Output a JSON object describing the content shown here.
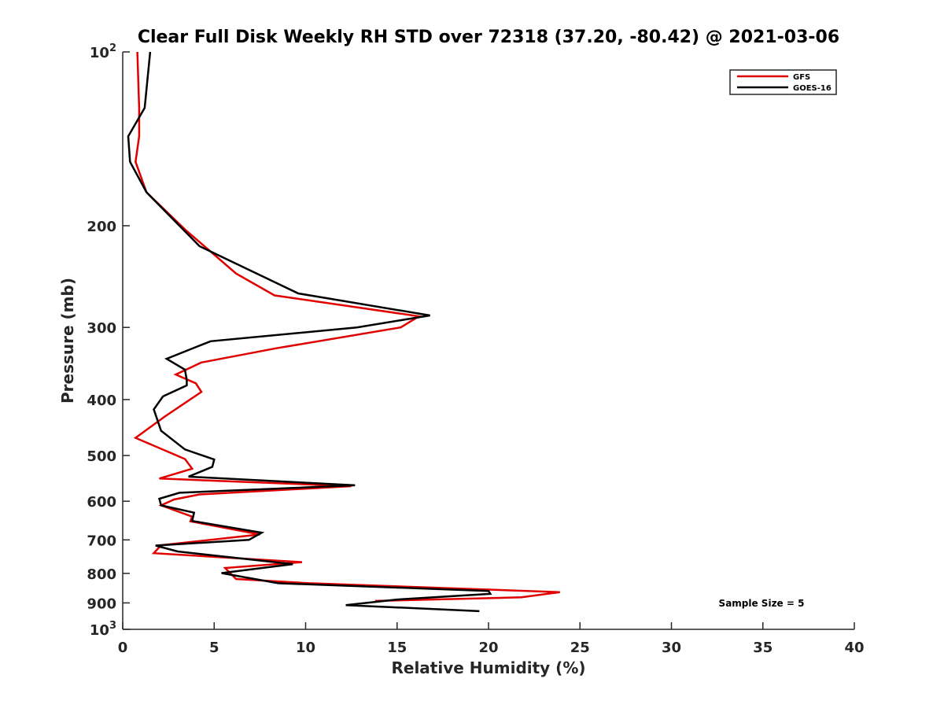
{
  "chart_data": {
    "type": "line",
    "title": "Clear Full Disk Weekly RH STD over 72318 (37.20, -80.42) @ 2021-03-06",
    "xlabel": "Relative Humidity (%)",
    "ylabel": "Pressure (mb)",
    "xlim": [
      0,
      40
    ],
    "ylim": [
      100,
      1000
    ],
    "y_scale": "log",
    "y_reversed": true,
    "xticks": [
      "0",
      "5",
      "10",
      "15",
      "20",
      "25",
      "30",
      "35",
      "40"
    ],
    "yticks": [
      {
        "value": 100,
        "base": "10",
        "exp": "2"
      },
      {
        "value": 200,
        "label": "200"
      },
      {
        "value": 300,
        "label": "300"
      },
      {
        "value": 400,
        "label": "400"
      },
      {
        "value": 500,
        "label": "500"
      },
      {
        "value": 600,
        "label": "600"
      },
      {
        "value": 700,
        "label": "700"
      },
      {
        "value": 800,
        "label": "800"
      },
      {
        "value": 900,
        "label": "900"
      },
      {
        "value": 1000,
        "base": "10",
        "exp": "3"
      }
    ],
    "grid": false,
    "legend_position": "top-right",
    "annotation": "Sample Size = 5",
    "series": [
      {
        "name": "GFS",
        "color": "#e00000",
        "points": [
          [
            0.8,
            100
          ],
          [
            0.9,
            125
          ],
          [
            0.9,
            140
          ],
          [
            0.7,
            155
          ],
          [
            1.3,
            175
          ],
          [
            3.4,
            203
          ],
          [
            6.2,
            242
          ],
          [
            8.3,
            264
          ],
          [
            16.2,
            287
          ],
          [
            15.2,
            300
          ],
          [
            8.4,
            326
          ],
          [
            4.3,
            345
          ],
          [
            2.9,
            362
          ],
          [
            4.0,
            375
          ],
          [
            4.3,
            388
          ],
          [
            2.3,
            428
          ],
          [
            0.7,
            466
          ],
          [
            3.4,
            507
          ],
          [
            3.8,
            527
          ],
          [
            2.0,
            548
          ],
          [
            12.5,
            565
          ],
          [
            4.2,
            584
          ],
          [
            2.8,
            596
          ],
          [
            2.1,
            610
          ],
          [
            3.8,
            638
          ],
          [
            3.7,
            650
          ],
          [
            7.5,
            685
          ],
          [
            2.1,
            715
          ],
          [
            1.7,
            738
          ],
          [
            9.8,
            765
          ],
          [
            5.6,
            783
          ],
          [
            6.2,
            818
          ],
          [
            10.2,
            832
          ],
          [
            23.9,
            862
          ],
          [
            21.8,
            880
          ],
          [
            13.8,
            893
          ]
        ]
      },
      {
        "name": "GOES-16",
        "color": "#000000",
        "points": [
          [
            1.5,
            100
          ],
          [
            1.2,
            125
          ],
          [
            0.3,
            140
          ],
          [
            0.4,
            155
          ],
          [
            1.3,
            175
          ],
          [
            4.2,
            217
          ],
          [
            9.6,
            262
          ],
          [
            16.8,
            286
          ],
          [
            12.8,
            300
          ],
          [
            4.8,
            317
          ],
          [
            2.4,
            340
          ],
          [
            3.4,
            355
          ],
          [
            3.5,
            370
          ],
          [
            3.5,
            378
          ],
          [
            2.2,
            395
          ],
          [
            1.7,
            416
          ],
          [
            2.1,
            453
          ],
          [
            3.4,
            488
          ],
          [
            5.0,
            508
          ],
          [
            4.9,
            523
          ],
          [
            3.6,
            544
          ],
          [
            12.7,
            563
          ],
          [
            3.1,
            580
          ],
          [
            2.0,
            594
          ],
          [
            2.1,
            610
          ],
          [
            3.9,
            628
          ],
          [
            3.8,
            649
          ],
          [
            7.6,
            680
          ],
          [
            6.9,
            700
          ],
          [
            1.8,
            716
          ],
          [
            3.0,
            733
          ],
          [
            9.3,
            771
          ],
          [
            5.4,
            799
          ],
          [
            8.5,
            832
          ],
          [
            20.0,
            858
          ],
          [
            20.1,
            868
          ],
          [
            15.0,
            888
          ],
          [
            12.2,
            908
          ],
          [
            19.5,
            930
          ]
        ]
      }
    ]
  }
}
